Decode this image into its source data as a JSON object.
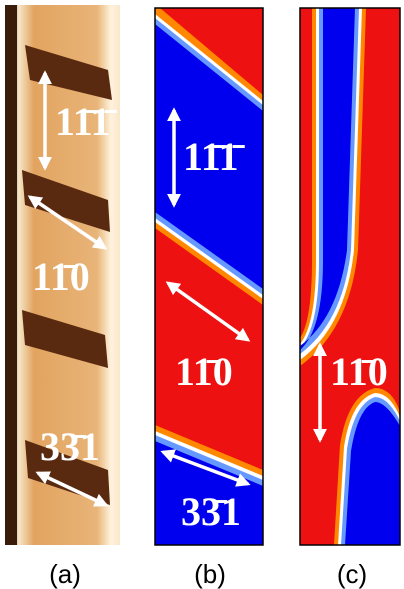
{
  "panels": [
    {
      "caption": "(a)",
      "labels": [
        "11̄1̄",
        "11̄0",
        "33̄1"
      ]
    },
    {
      "caption": "(b)",
      "labels": [
        "11̄1̄",
        "11̄0",
        "33̄1"
      ]
    },
    {
      "caption": "(c)",
      "labels": [
        "11̄0"
      ]
    }
  ]
}
